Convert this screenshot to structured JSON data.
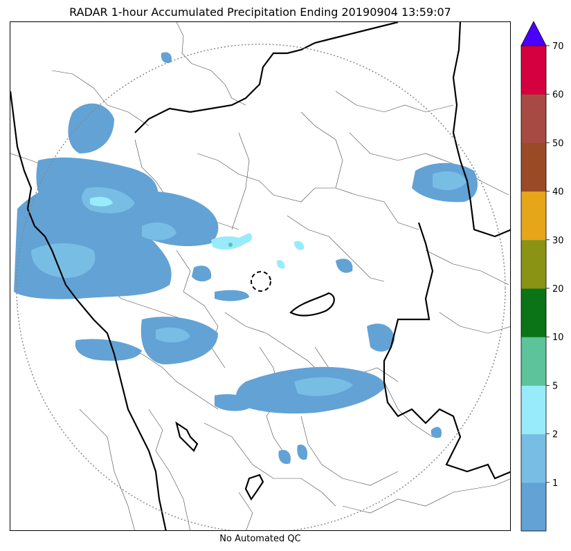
{
  "title": "RADAR 1-hour Accumulated Precipitation Ending 20190904 13:59:07",
  "footer": "No Automated QC",
  "colors": {
    "rain_1": "#63a2d5",
    "rain_2": "#78bde3",
    "rain_5": "#97ebfb",
    "rain_10": "#5cc39a",
    "radar_ring": "#888888",
    "boundary": "#000000"
  },
  "colorbar": {
    "ticks": [
      "1",
      "2",
      "5",
      "10",
      "20",
      "30",
      "40",
      "50",
      "60",
      "70"
    ],
    "bins": [
      {
        "color": "#63a2d5"
      },
      {
        "color": "#78bde3"
      },
      {
        "color": "#97ebfb"
      },
      {
        "color": "#5cc39a"
      },
      {
        "color": "#0b7417"
      },
      {
        "color": "#8a9314"
      },
      {
        "color": "#e6a61a"
      },
      {
        "color": "#9a4b25"
      },
      {
        "color": "#a84a44"
      },
      {
        "color": "#d5003f"
      }
    ],
    "extend_color": "#4b00ff"
  }
}
